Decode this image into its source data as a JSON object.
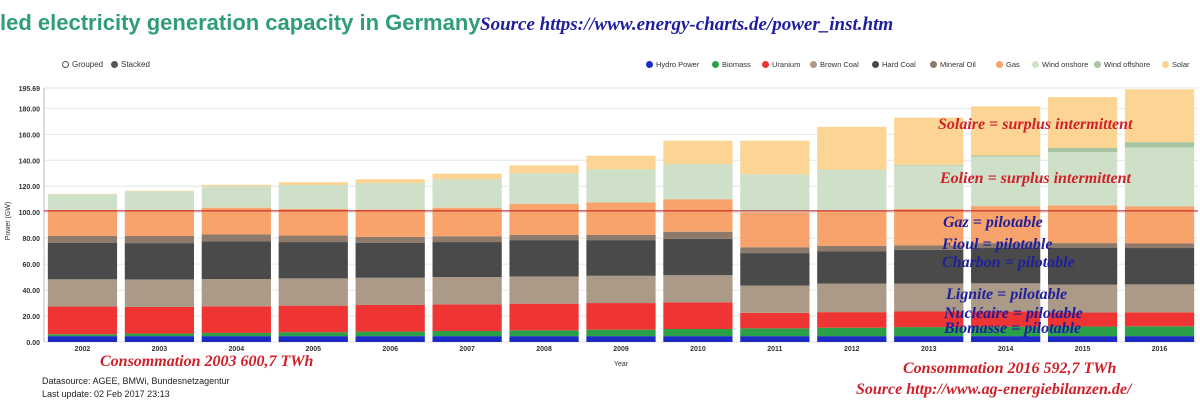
{
  "header": {
    "title": "led electricity generation capacity in Germany",
    "source": "Source https://www.energy-charts.de/power_inst.htm"
  },
  "toggles": {
    "grouped": "Grouped",
    "stacked": "Stacked"
  },
  "footer": {
    "datasource": "Datasource: AGEE, BMWi, Bundesnetzagentur",
    "last_update": "Last update: 02 Feb 2017 23:13"
  },
  "annotations": {
    "solaire": "Solaire = surplus intermittent",
    "eolien": "Eolien = surplus intermittent",
    "gaz": "Gaz = pilotable",
    "fioul": "Fioul = pilotable",
    "charbon": "Charbon = pilotable",
    "lignite": "Lignite = pilotable",
    "nucleaire": "Nucléaire = pilotable",
    "biomasse": "Biomasse = pilotable",
    "conso_2003": "Consommation 2003 600,7 TWh",
    "conso_2016": "Consommation 2016 592,7 TWh",
    "source_bottom": "Source http://www.ag-energiebilanzen.de/"
  },
  "colors": {
    "title": "#2f9d79",
    "annotation_red": "#d0202a",
    "annotation_blue": "#1f1f9e",
    "reference_line": "#c0141c"
  },
  "chart_data": {
    "type": "bar",
    "stacked": true,
    "title": "",
    "xlabel": "Year",
    "ylabel": "Power (GW)",
    "ylim": [
      0,
      195.69
    ],
    "yticks": [
      "0.00",
      "20.00",
      "40.00",
      "60.00",
      "80.00",
      "100.00",
      "120.00",
      "140.00",
      "160.00",
      "180.00",
      "195.69"
    ],
    "grid": true,
    "legend_position": "top-right",
    "reference_line": 101,
    "categories": [
      "2002",
      "2003",
      "2004",
      "2005",
      "2006",
      "2007",
      "2008",
      "2009",
      "2010",
      "2011",
      "2012",
      "2013",
      "2014",
      "2015",
      "2016"
    ],
    "series": [
      {
        "name": "Hydro Power",
        "color": "#1c2bc4",
        "values": [
          4.5,
          4.5,
          4.5,
          4.5,
          4.5,
          4.5,
          4.5,
          4.5,
          4.5,
          4.5,
          4.5,
          4.5,
          4.5,
          4.5,
          4.5
        ]
      },
      {
        "name": "Biomass",
        "color": "#2aa048",
        "values": [
          1.5,
          2.0,
          2.5,
          3.0,
          3.5,
          4.0,
          4.5,
          5.0,
          5.5,
          6.0,
          6.5,
          7.0,
          7.2,
          7.4,
          7.6
        ]
      },
      {
        "name": "Uranium",
        "color": "#ef3434",
        "values": [
          21.3,
          20.5,
          20.5,
          20.5,
          20.5,
          20.5,
          20.5,
          20.5,
          20.5,
          12.0,
          12.0,
          12.0,
          12.0,
          10.8,
          10.8
        ]
      },
      {
        "name": "Brown Coal",
        "color": "#ab9a87",
        "values": [
          21.0,
          21.2,
          21.0,
          21.0,
          21.0,
          21.0,
          21.0,
          21.0,
          21.0,
          21.0,
          22.0,
          21.5,
          21.5,
          21.5,
          21.5
        ]
      },
      {
        "name": "Hard Coal",
        "color": "#4a4a4a",
        "values": [
          28.0,
          28.0,
          29.0,
          28.0,
          27.0,
          27.0,
          28.0,
          27.5,
          28.0,
          25.0,
          25.0,
          26.0,
          27.5,
          28.5,
          28.0
        ]
      },
      {
        "name": "Mineral Oil",
        "color": "#8d7a6a",
        "values": [
          5.5,
          5.5,
          5.5,
          5.0,
          4.5,
          4.5,
          4.0,
          4.0,
          5.5,
          4.5,
          4.0,
          3.5,
          3.5,
          3.5,
          3.5
        ]
      },
      {
        "name": "Gas",
        "color": "#f7a36b",
        "values": [
          20.0,
          20.0,
          20.5,
          20.5,
          21.0,
          22.0,
          24.0,
          25.0,
          25.0,
          27.0,
          27.5,
          28.0,
          28.5,
          29.0,
          28.5
        ]
      },
      {
        "name": "Wind onshore",
        "color": "#cfe0c8",
        "values": [
          12.0,
          14.5,
          16.5,
          18.5,
          20.5,
          22.0,
          23.5,
          25.5,
          27.0,
          29.0,
          31.0,
          33.5,
          38.0,
          41.0,
          45.5
        ]
      },
      {
        "name": "Wind offshore",
        "color": "#a9c4a0",
        "values": [
          0,
          0,
          0,
          0,
          0,
          0,
          0,
          0,
          0.1,
          0.2,
          0.3,
          0.5,
          1.0,
          3.3,
          4.1
        ]
      },
      {
        "name": "Solar",
        "color": "#fcd594",
        "values": [
          0.3,
          0.4,
          1.1,
          2.1,
          2.9,
          4.2,
          6.1,
          10.6,
          18.0,
          25.9,
          33.0,
          36.3,
          37.9,
          39.2,
          40.7
        ]
      }
    ]
  }
}
